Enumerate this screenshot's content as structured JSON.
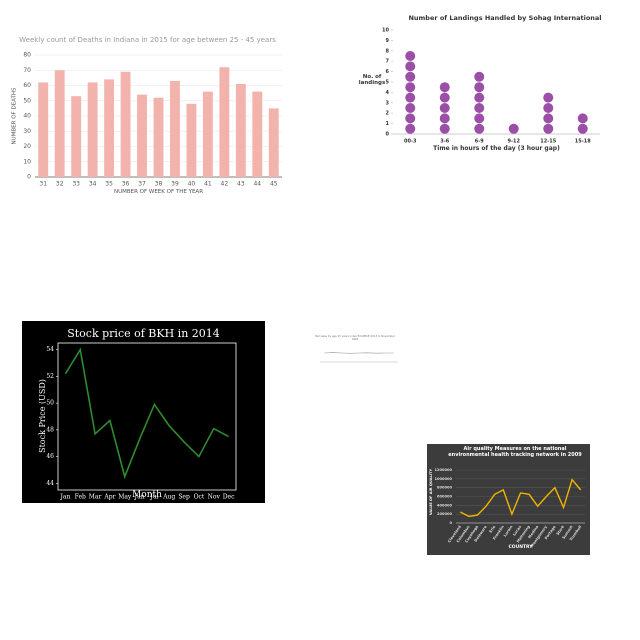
{
  "chart_data": [
    {
      "type": "bar",
      "title": "Weekly count of Deaths in Indiana in 2015 for age between 25 - 45 years",
      "x_label": "NUMBER OF WEEK OF THE YEAR",
      "y_label": "NUMBER OF DEATHS",
      "categories": [
        "31",
        "32",
        "33",
        "34",
        "35",
        "36",
        "37",
        "38",
        "39",
        "40",
        "41",
        "42",
        "43",
        "44",
        "45"
      ],
      "values": [
        62,
        70,
        53,
        62,
        64,
        69,
        54,
        52,
        63,
        48,
        56,
        72,
        61,
        56,
        45
      ],
      "color": "#f2b3ad",
      "ylim": [
        0,
        80
      ],
      "yticks": [
        0,
        10,
        20,
        30,
        40,
        50,
        60,
        70,
        80
      ],
      "grid": true
    },
    {
      "type": "dot",
      "title": "Number of Landings Handled by Sohag International",
      "x_label": "Time in hours of the day (3 hour gap)",
      "y_label": "No. of landings",
      "categories": [
        "00-3",
        "3-6",
        "6-9",
        "9-12",
        "12-15",
        "15-18"
      ],
      "values": [
        8,
        5,
        6,
        1,
        4,
        2
      ],
      "color": "#9b4fa6",
      "ylim": [
        0,
        10
      ],
      "yticks": [
        0,
        1,
        2,
        3,
        4,
        5,
        6,
        7,
        8,
        9,
        10
      ],
      "grid": false
    },
    {
      "type": "line",
      "title": "Stock price of BKH in 2014",
      "x_label": "Month",
      "y_label": "Stock Price (USD)",
      "categories": [
        "Jan",
        "Feb",
        "Mar",
        "Apr",
        "May",
        "Jun",
        "Jul",
        "Aug",
        "Sep",
        "Oct",
        "Nov",
        "Dec"
      ],
      "values": [
        52.2,
        54.0,
        47.7,
        48.7,
        44.5,
        47.3,
        49.9,
        48.3,
        47.1,
        46.0,
        48.1,
        47.5
      ],
      "color": "#2e8b2e",
      "ylim": [
        43.5,
        54.5
      ],
      "yticks": [
        44,
        46,
        48,
        50,
        52,
        54
      ],
      "grid": false
    },
    {
      "type": "line",
      "title": "Net sales by age 25 years index EXAMPLE 2013 to November 1993",
      "categories": [
        null,
        null,
        null,
        null,
        null,
        null,
        null,
        null,
        null
      ],
      "values": [
        6,
        6.3,
        6,
        5.8,
        6,
        6.1,
        5.9,
        6,
        6
      ],
      "color": "#999999",
      "ylim": [
        0,
        10
      ],
      "grid": false
    },
    {
      "type": "line",
      "title": "Air quality Measures on the national environmental health tracking network in 2009",
      "x_label": "COUNTRY",
      "y_label": "VALUE OF AIR QUALITY",
      "categories": [
        "Cleveland",
        "Columbus",
        "Cuyahoga",
        "Delaware",
        "Erie",
        "Franklin",
        "Lorain",
        "Lucas",
        "Mahoning",
        "Medina",
        "Montgomery",
        "Portage",
        "Stark",
        "Summit",
        "Trumbull"
      ],
      "values": [
        250000,
        150000,
        180000,
        380000,
        650000,
        750000,
        200000,
        680000,
        650000,
        380000,
        600000,
        800000,
        350000,
        980000,
        750000
      ],
      "color": "#f0b400",
      "ylim": [
        0,
        1200000
      ],
      "yticks": [
        0,
        200000,
        400000,
        600000,
        800000,
        1000000,
        1200000
      ],
      "grid": true
    }
  ]
}
